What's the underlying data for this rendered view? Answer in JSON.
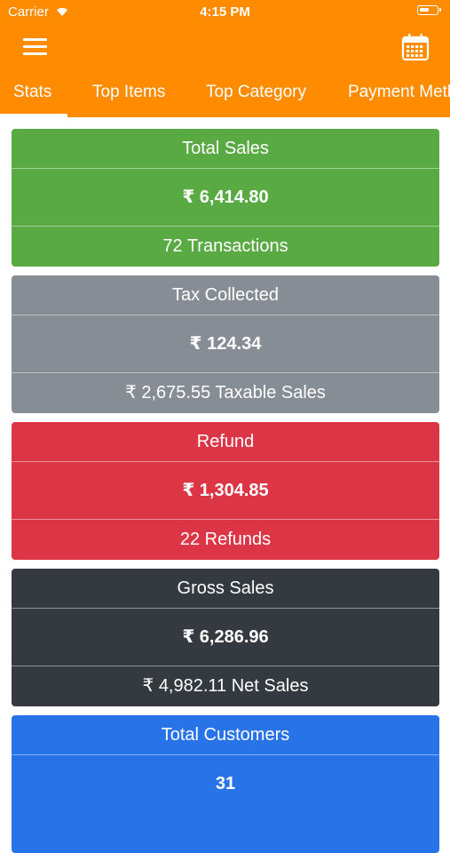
{
  "status_bar": {
    "carrier": "Carrier",
    "time": "4:15 PM"
  },
  "header": {
    "menu_icon": "hamburger-menu-icon",
    "calendar_icon": "calendar-icon"
  },
  "tabs": [
    {
      "label": "Stats",
      "active": true
    },
    {
      "label": "Top Items"
    },
    {
      "label": "Top Category"
    },
    {
      "label": "Payment Methods"
    }
  ],
  "colors": {
    "header": "#ff8c00",
    "total_sales": "#5aaa44",
    "tax": "#878d94",
    "refund": "#dc3545",
    "gross": "#343a40",
    "customers": "#2873e8"
  },
  "cards": [
    {
      "title": "Total Sales",
      "value": "₹ 6,414.80",
      "footer": "72 Transactions"
    },
    {
      "title": "Tax Collected",
      "value": "₹ 124.34",
      "footer": "₹ 2,675.55 Taxable Sales"
    },
    {
      "title": "Refund",
      "value": "₹ 1,304.85",
      "footer": "22 Refunds"
    },
    {
      "title": "Gross Sales",
      "value": "₹ 6,286.96",
      "footer": "₹ 4,982.11 Net Sales"
    },
    {
      "title": "Total Customers",
      "value": "31",
      "footer": ""
    }
  ]
}
